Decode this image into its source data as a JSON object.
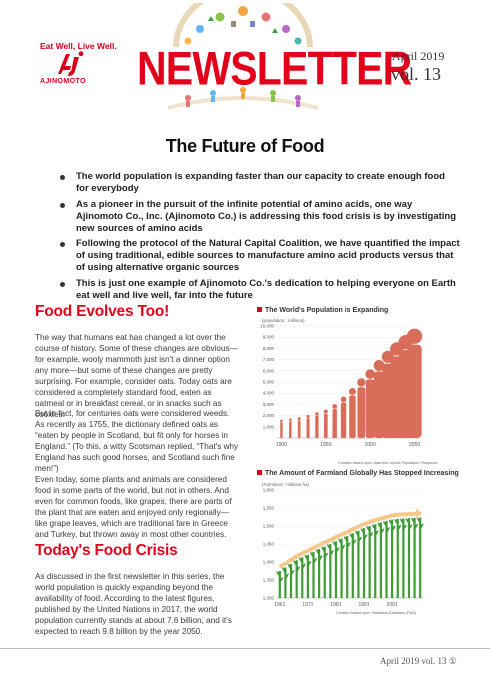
{
  "header": {
    "tagline": "Eat Well, Live Well.",
    "logo_text": "AJINOMOTO",
    "newsletter_title": "NEWSLETTER",
    "issue_date": "April 2019",
    "issue_volume": "vol. 13"
  },
  "main_title": "The Future of Food",
  "bullets": [
    "The world population is expanding faster than our capacity to create enough food for everybody",
    "As a pioneer in the pursuit of the infinite potential of amino acids, one way Ajinomoto Co., Inc. (Ajinomoto Co.) is addressing this food crisis is by investigating new sources of amino acids",
    "Following the protocol of the Natural Capital Coalition, we have quantified the impact of using traditional, edible sources to manufacture amino acid products versus that of using alternative organic sources",
    "This is just one example of Ajinomoto Co.'s dedication to helping everyone on Earth eat well and live well, far into the future"
  ],
  "section1": {
    "heading": "Food Evolves Too!",
    "paragraphs": [
      "The way that humans eat has changed a lot over the course of history. Some of these changes are obvious—for example, wooly mammoth just isn't a dinner option any more—but some of these changes are pretty surprising. For example, consider oats. Today oats are considered a completely standard food, eaten as oatmeal or in breakfast cereal, or in snacks such as cookies.",
      "But in fact, for centuries oats were considered weeds. As recently as 1755, the dictionary defined oats as “eaten by people in Scotland, but fit only for horses in England.” (To this, a witty Scotsman replied, “That's why England has such good horses, and Scotland such fine men!”)",
      "Even today, some plants and animals are considered food in some parts of the world, but not in others. And even for common foods, like grapes, there are parts of the plant that are eaten and enjoyed only regionally—like grape leaves, which are traditional fare in Greece and Turkey, but thrown away in most other countries."
    ]
  },
  "section2": {
    "heading": "Today's Food Crisis",
    "paragraph": "As discussed in the first newsletter in this series, the world population is quickly expanding beyond the availability of food. According to the latest figures, published by the United Nations in 2017, the world population currently stands at about 7.6 billion, and it's expected to reach 9.8 billion by the year 2050."
  },
  "chart_data": [
    {
      "type": "bar",
      "title": "The World's Population is Expanding",
      "ylabel": "(population : millions)",
      "source": "Created based upon data from World Population Prospects",
      "x_tick_labels": [
        "1900",
        "1950",
        "2000",
        "2050"
      ],
      "y_tick_labels": [
        "1,000",
        "2,000",
        "3,000",
        "4,000",
        "5,000",
        "6,000",
        "7,000",
        "8,000",
        "9,000",
        "10,000"
      ],
      "ylim": [
        0,
        10000
      ],
      "categories": [
        "1900",
        "1910",
        "1920",
        "1930",
        "1940",
        "1950",
        "1960",
        "1970",
        "1980",
        "1990",
        "2000",
        "2010",
        "2020",
        "2030",
        "2040",
        "2050"
      ],
      "values": [
        1650,
        1750,
        1860,
        2070,
        2300,
        2530,
        3030,
        3700,
        4460,
        5330,
        6140,
        6960,
        7790,
        8550,
        9200,
        9770
      ],
      "colors": {
        "bar": "#d96d5a",
        "grid": "#e8e8e8"
      }
    },
    {
      "type": "bar",
      "title": "The Amount of Farmland Globally Has Stopped Increasing",
      "ylabel": "(Farmland : millions ha)",
      "source": "Created based upon Statistical Database (FAO)",
      "x_tick_labels": [
        "1961",
        "1971",
        "1981",
        "1991",
        "2001"
      ],
      "y_tick_labels": [
        "1,300",
        "1,350",
        "1,400",
        "1,450",
        "1,500",
        "1,550",
        "1,600"
      ],
      "ylim": [
        1300,
        1600
      ],
      "categories": [
        "1961",
        "1963",
        "1965",
        "1967",
        "1969",
        "1971",
        "1973",
        "1975",
        "1977",
        "1979",
        "1981",
        "1983",
        "1985",
        "1987",
        "1989",
        "1991",
        "1993",
        "1995",
        "1997",
        "1999",
        "2001",
        "2003",
        "2005",
        "2007",
        "2009",
        "2011"
      ],
      "values": [
        1375,
        1385,
        1395,
        1405,
        1413,
        1420,
        1428,
        1436,
        1443,
        1450,
        1458,
        1465,
        1472,
        1480,
        1487,
        1494,
        1500,
        1505,
        1510,
        1514,
        1518,
        1520,
        1521,
        1522,
        1523,
        1524
      ],
      "colors": {
        "bar": "#3f9b34",
        "arrow": "#f6c78a"
      }
    }
  ],
  "footer": {
    "text": "April 2019   vol. 13 ①"
  }
}
